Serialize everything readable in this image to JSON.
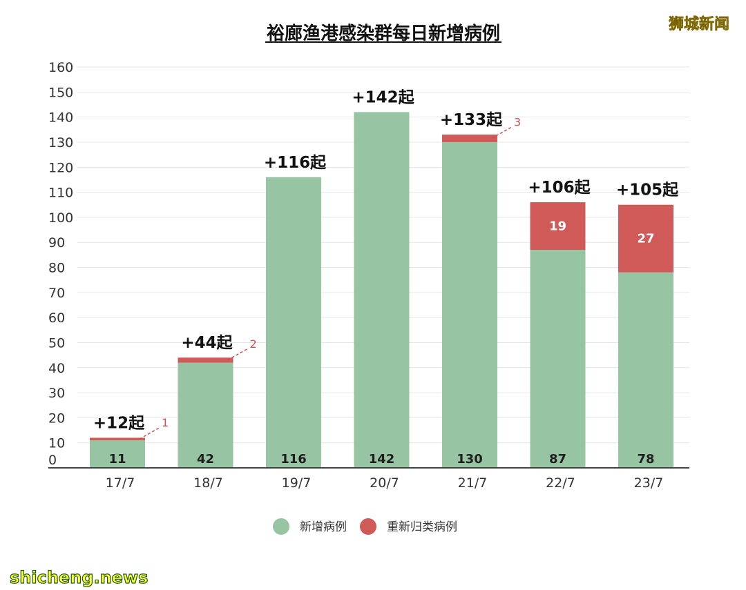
{
  "watermark_top": "狮城新闻",
  "watermark_bottom": "shicheng.news",
  "chart_data": {
    "type": "bar",
    "stacked": true,
    "title": "裕廊渔港感染群每日新增病例",
    "xlabel": "",
    "ylabel": "",
    "categories": [
      "17/7",
      "18/7",
      "19/7",
      "20/7",
      "21/7",
      "22/7",
      "23/7"
    ],
    "ylim": [
      0,
      160
    ],
    "yticks": [
      0,
      10,
      20,
      30,
      40,
      50,
      60,
      70,
      80,
      90,
      100,
      110,
      120,
      130,
      140,
      150,
      160
    ],
    "grid": true,
    "legend_position": "bottom",
    "series": [
      {
        "name": "新增病例",
        "color": "#97c4a3",
        "values": [
          11,
          42,
          116,
          142,
          130,
          87,
          78
        ],
        "labels": [
          "11",
          "42",
          "116",
          "142",
          "130",
          "87",
          "78"
        ]
      },
      {
        "name": "重新归类病例",
        "color": "#cf5a57",
        "values": [
          1,
          2,
          0,
          0,
          3,
          19,
          27
        ],
        "labels": [
          "1",
          "2",
          "",
          "",
          "3",
          "19",
          "27"
        ],
        "label_style": [
          "callout",
          "callout",
          "none",
          "none",
          "callout",
          "inside",
          "inside"
        ]
      }
    ],
    "totals": [
      "+12起",
      "+44起",
      "+116起",
      "+142起",
      "+133起",
      "+106起",
      "+105起"
    ]
  }
}
